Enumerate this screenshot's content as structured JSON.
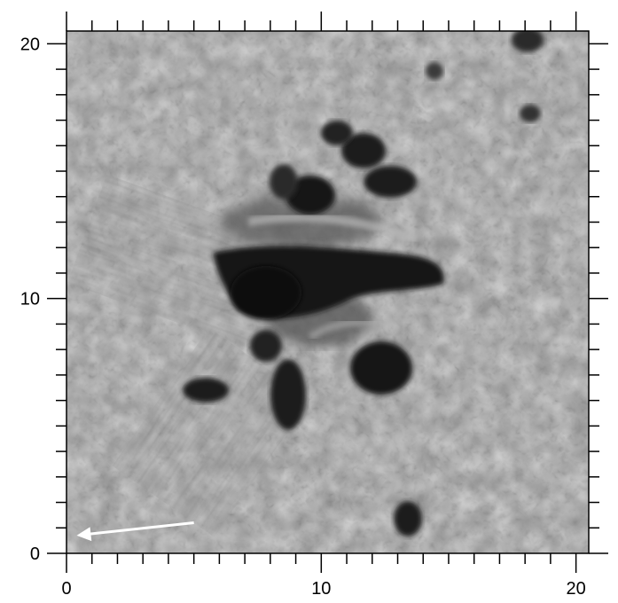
{
  "figure": {
    "description_kind": "solar photosphere image with axes",
    "x_axis": {
      "min": 0,
      "max": 20.5,
      "ticks": [
        0,
        10,
        20
      ],
      "tick_labels": [
        "0",
        "10",
        "20"
      ]
    },
    "y_axis": {
      "min": 0,
      "max": 20.5,
      "ticks": [
        0,
        10,
        20
      ],
      "tick_labels": [
        "0",
        "10",
        "20"
      ]
    },
    "minor_tick_step": 1,
    "arrow": {
      "from": [
        5,
        1.2
      ],
      "to": [
        0.4,
        0.7
      ],
      "color": "#ffffff"
    },
    "colors": {
      "frame": "#000000",
      "background_gray": "#8c8c8c",
      "granule": "#a5a5a5",
      "lane": "#6a6a6a",
      "umbra": "#151515",
      "penumbra": "#4a4a4a"
    }
  }
}
